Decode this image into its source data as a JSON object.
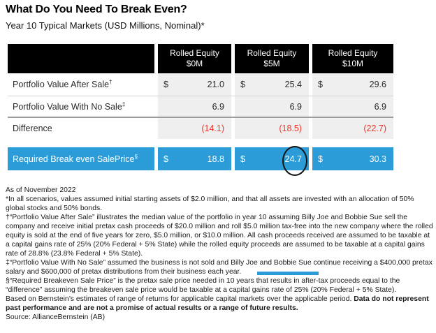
{
  "header": {
    "title": "What Do You Need To Break Even?",
    "subtitle": "Year 10 Typical Markets (USD Millions, Nominal)*"
  },
  "table": {
    "columns": [
      {
        "line1": "Rolled Equity",
        "line2": "$0M"
      },
      {
        "line1": "Rolled Equity",
        "line2": "$5M"
      },
      {
        "line1": "Rolled Equity",
        "line2": "$10M"
      }
    ],
    "rows": [
      {
        "label": "Portfolio Value After Sale",
        "footnote_mark": "†",
        "cells": [
          {
            "currency": "$",
            "value": "21.0"
          },
          {
            "currency": "$",
            "value": "25.4"
          },
          {
            "currency": "$",
            "value": "29.6"
          }
        ]
      },
      {
        "label": "Portfolio Value With No Sale",
        "footnote_mark": "‡",
        "cells": [
          {
            "currency": "",
            "value": "6.9"
          },
          {
            "currency": "",
            "value": "6.9"
          },
          {
            "currency": "",
            "value": "6.9"
          }
        ]
      },
      {
        "label": "Difference",
        "footnote_mark": "",
        "cells": [
          {
            "currency": "",
            "value": "(14.1)"
          },
          {
            "currency": "",
            "value": "(18.5)"
          },
          {
            "currency": "",
            "value": "(22.7)"
          }
        ]
      }
    ],
    "highlight_row": {
      "label": "Required Break even SalePrice",
      "footnote_mark": "§",
      "cells": [
        {
          "currency": "$",
          "value": "18.8"
        },
        {
          "currency": "$",
          "value": "24.7"
        },
        {
          "currency": "$",
          "value": "30.3"
        }
      ]
    }
  },
  "annotations": {
    "circled_value": "24.7",
    "highlight_bar_color": "#2b9cd7"
  },
  "colors": {
    "accent_blue": "#2b9cd7",
    "negative_red": "#ee372c",
    "header_black": "#000000",
    "cell_gray": "#efefef"
  },
  "footnotes": {
    "as_of": "As of November 2022",
    "star": "*In all scenarios, values assumed initial starting assets of $2.0 million, and that all assets are invested with an allocation of 50% global stocks and 50% bonds.",
    "dagger": "†“Portfolio Value After Sale” illustrates the median value of the portfolio in year 10 assuming Billy Joe and Bobbie Sue sell the company and receive initial pretax cash proceeds of $20.0 million and roll $5.0 million tax-free into the new company where the rolled equity is sold at the end of five years for zero, $5.0 million, or $10.0 million. All cash proceeds received are assumed to be taxable at a capital gains rate of 25% (20% Federal + 5% State) while the rolled equity proceeds are assumed to be taxable at a capital gains rate of 28.8% (23.8% Federal + 5% State).",
    "double_dagger": "‡“Portfolio Value With No Sale” assumed the business is not sold and Billy Joe and Bobbie Sue continue receiving a $400,000 pretax salary and $600,000 of pretax distributions from their business each year.",
    "section": "§“Required Breakeven Sale Price” is the pretax sale price needed in 10 years that results in after-tax proceeds equal to the “difference” assuming the breakeven sale price would be taxable at a capital gains rate of 25% (20% Federal + 5% State).",
    "disclaimer_normal": "Based on Bernstein’s estimates of range of returns for applicable capital markets over the applicable period. ",
    "disclaimer_bold": "Data do not represent past performance and are not a promise of actual results or a range of future results.",
    "source": "Source: AllianceBernstein (AB)"
  }
}
